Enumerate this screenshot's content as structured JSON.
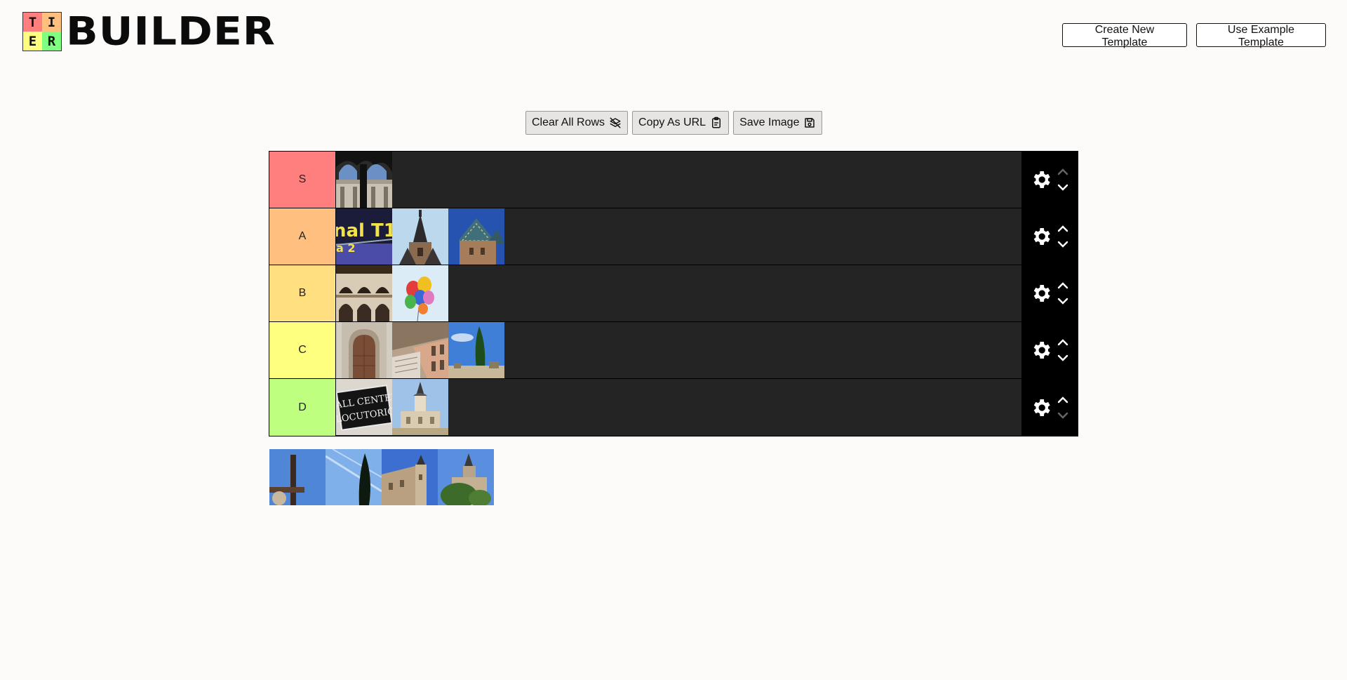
{
  "logo": {
    "letters": [
      "T",
      "I",
      "E",
      "R"
    ],
    "letter_colors": [
      "#ff7f7f",
      "#ffbf7f",
      "#ffff7f",
      "#7fff7f"
    ],
    "word": "BUILDER"
  },
  "header": {
    "create_template": "Create New Template",
    "use_example": "Use Example Template"
  },
  "toolbar": {
    "clear_all": "Clear All Rows",
    "copy_url": "Copy As URL",
    "save_image": "Save Image"
  },
  "tiers": [
    {
      "label": "S",
      "color": "#ff7f7f",
      "items": [
        "arched cloister"
      ]
    },
    {
      "label": "A",
      "color": "#ffbf7f",
      "items": [
        "terminal T1 sign",
        "church spire",
        "tiled tower roof"
      ]
    },
    {
      "label": "B",
      "color": "#ffdf7f",
      "items": [
        "arcaded courtyard",
        "balloons"
      ]
    },
    {
      "label": "C",
      "color": "#ffff7f",
      "items": [
        "carved doorway",
        "building courtyard",
        "cypress tree"
      ]
    },
    {
      "label": "D",
      "color": "#bfff7f",
      "items": [
        "call center sign",
        "bell tower"
      ]
    }
  ],
  "pool": [
    "iron cross",
    "cypress silhouette",
    "castle tower",
    "church with tree"
  ],
  "icons": {
    "gear": "gear-icon",
    "up": "chevron-up-icon",
    "down": "chevron-down-icon",
    "clear": "layers-off-icon",
    "copy": "clipboard-icon",
    "save": "floppy-disk-icon"
  }
}
